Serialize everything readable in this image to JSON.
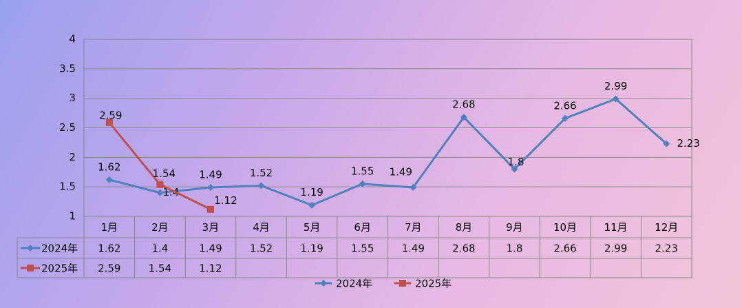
{
  "chart_data": {
    "type": "line",
    "categories": [
      "1月",
      "2月",
      "3月",
      "4月",
      "5月",
      "6月",
      "7月",
      "8月",
      "9月",
      "10月",
      "11月",
      "12月"
    ],
    "series": [
      {
        "name": "2024年",
        "color": "#4f81bd",
        "values": [
          1.62,
          1.4,
          1.49,
          1.52,
          1.19,
          1.55,
          1.49,
          2.68,
          1.8,
          2.66,
          2.99,
          2.23
        ]
      },
      {
        "name": "2025年",
        "color": "#c0504d",
        "values": [
          2.59,
          1.54,
          1.12,
          null,
          null,
          null,
          null,
          null,
          null,
          null,
          null,
          null
        ]
      }
    ],
    "ylim": [
      1,
      4
    ],
    "yticks": [
      1,
      1.5,
      2,
      2.5,
      3,
      3.5,
      4
    ],
    "grid": true,
    "legend": "bottom"
  }
}
